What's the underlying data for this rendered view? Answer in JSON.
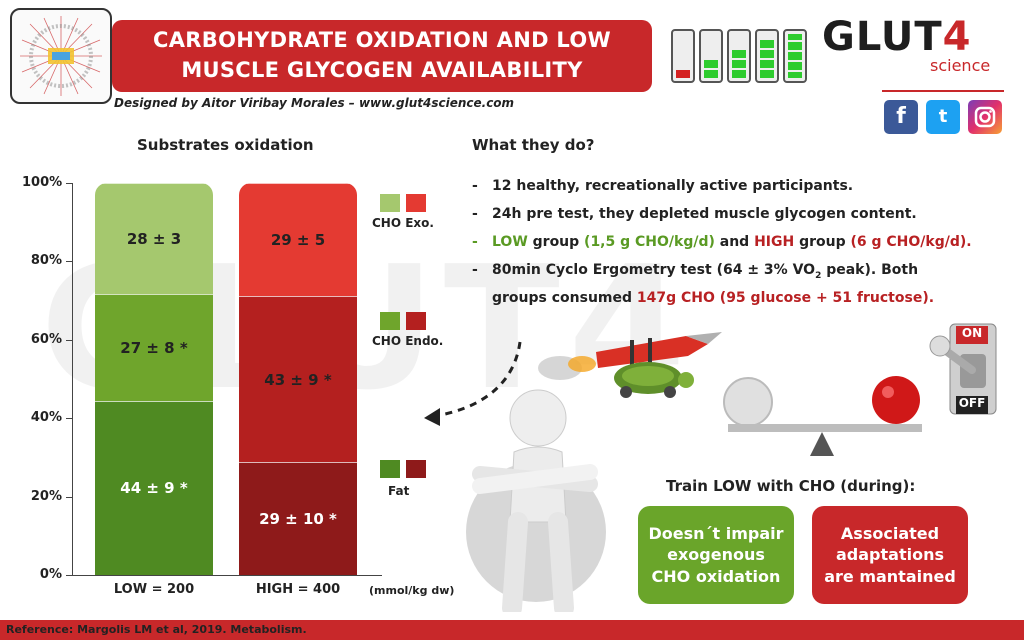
{
  "header": {
    "title_line1": "CARBOHYDRATE OXIDATION AND LOW",
    "title_line2": "MUSCLE GLYCOGEN AVAILABILITY",
    "designed_by": "Designed by Aitor Viribay Morales – www.glut4science.com",
    "brand_main": "GLUT",
    "brand_digit": "4",
    "brand_sub": "science",
    "social_icons": [
      "facebook-icon",
      "twitter-icon",
      "instagram-icon"
    ]
  },
  "colors": {
    "red": "#c8282a",
    "low_exo": "#a5c86e",
    "low_endo": "#6fa52c",
    "low_fat": "#4f8a22",
    "high_exo": "#e43a32",
    "high_endo": "#b4201f",
    "high_fat": "#8e1a1a"
  },
  "chart_data": {
    "type": "bar",
    "stacked": true,
    "title": "Substrates oxidation",
    "categories": [
      "LOW = 200",
      "HIGH = 400"
    ],
    "unit_label": "(mmol/kg dw)",
    "yticks": [
      "100%",
      "80%",
      "60%",
      "40%",
      "20%",
      "0%"
    ],
    "ylim": [
      0,
      100
    ],
    "series": [
      {
        "name": "Fat",
        "values": [
          44,
          29
        ],
        "labels": [
          "44 ± 9 *",
          "29 ± 10 *"
        ]
      },
      {
        "name": "CHO Endo.",
        "values": [
          27,
          43
        ],
        "labels": [
          "27 ± 8 *",
          "43 ± 9 *"
        ]
      },
      {
        "name": "CHO Exo.",
        "values": [
          28,
          29
        ],
        "labels": [
          "28 ± 3",
          "29 ± 5"
        ]
      }
    ],
    "legend": [
      "CHO Exo.",
      "CHO Endo.",
      "Fat"
    ]
  },
  "what": {
    "heading": "What they do?",
    "b1": "12 healthy, recreationally active participants.",
    "b2": "24h pre test, they depleted muscle glycogen content.",
    "b3_low": "LOW",
    "b3_group1": " group ",
    "b3_low_val": "(1,5 g CHO/kg/d)",
    "b3_and": " and ",
    "b3_high": "HIGH",
    "b3_group2": " group ",
    "b3_high_val": "(6 g CHO/kg/d).",
    "b4_a": "80min Cyclo Ergometry test (64 ± 3% VO",
    "b4_sub": "2",
    "b4_b": " peak). Both",
    "b5_a": "groups consumed ",
    "b5_b": "147g CHO (95 glucose + 51 fructose)."
  },
  "switch": {
    "on": "ON",
    "off": "OFF"
  },
  "train": {
    "heading": "Train LOW with CHO (during):",
    "box_green": [
      "Doesn´t impair",
      "exogenous",
      "CHO oxidation"
    ],
    "box_red": [
      "Associated",
      "adaptations",
      "are mantained"
    ]
  },
  "footer": {
    "reference": "Reference: Margolis LM et al, 2019. Metabolism."
  }
}
